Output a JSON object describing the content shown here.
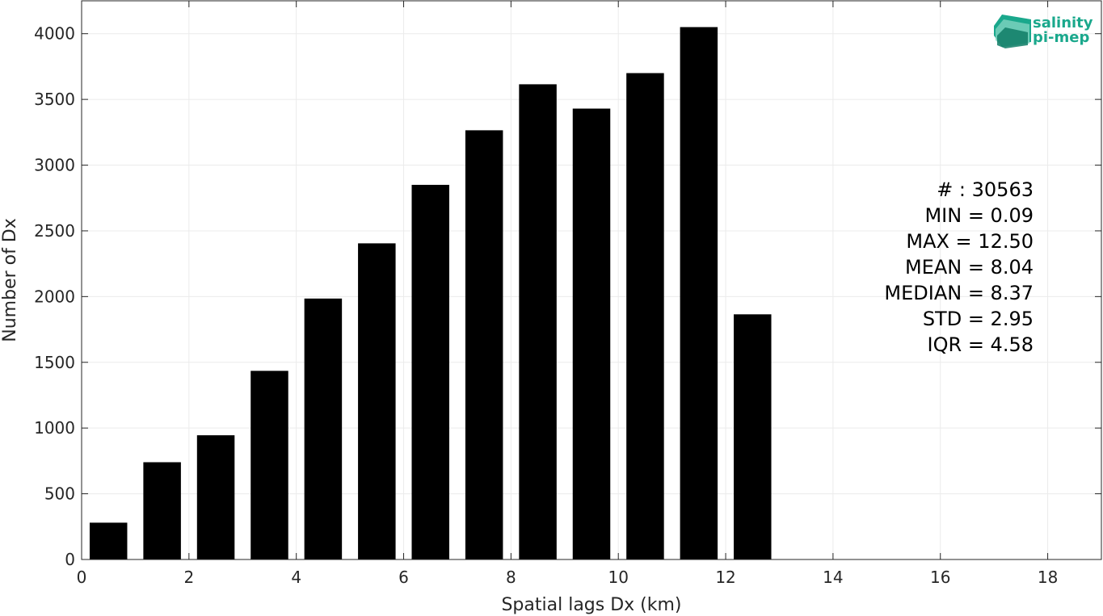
{
  "chart_data": {
    "type": "bar",
    "xlabel": "Spatial lags Dx (km)",
    "ylabel": "Number of Dx",
    "x": [
      0.5,
      1.5,
      2.5,
      3.5,
      4.5,
      5.5,
      6.5,
      7.5,
      8.5,
      9.5,
      10.5,
      11.5,
      12.5
    ],
    "values": [
      280,
      740,
      945,
      1435,
      1985,
      2405,
      2850,
      3265,
      3615,
      3430,
      3700,
      4050,
      1865
    ],
    "bar_width": 0.7,
    "xlim": [
      0,
      19
    ],
    "ylim": [
      0,
      4250
    ],
    "xticks": [
      0,
      2,
      4,
      6,
      8,
      10,
      12,
      14,
      16,
      18
    ],
    "yticks": [
      0,
      500,
      1000,
      1500,
      2000,
      2500,
      3000,
      3500,
      4000
    ],
    "grid": true,
    "bar_color": "#000000",
    "grid_color": "#ebebeb",
    "stats": [
      "# : 30563",
      "MIN = 0.09",
      "MAX =  12.50",
      "MEAN = 8.04",
      "MEDIAN = 8.37",
      "STD = 2.95",
      "IQR = 4.58"
    ]
  },
  "logo": {
    "line1": "salinity",
    "line2": "pi-mep",
    "color": "#1aa88c"
  }
}
